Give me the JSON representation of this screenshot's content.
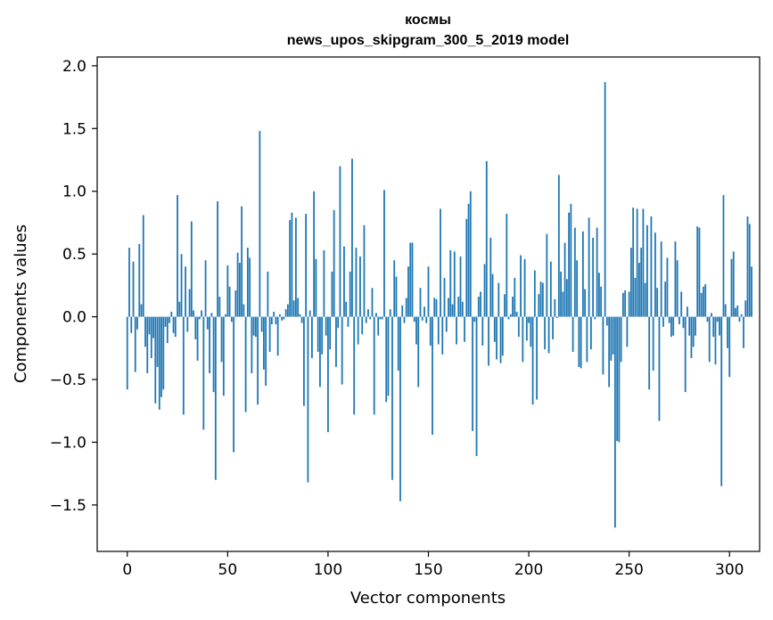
{
  "chart_data": {
    "type": "bar",
    "title": [
      "космы",
      "news_upos_skipgram_300_5_2019 model"
    ],
    "xlabel": "Vector components",
    "ylabel": "Components values",
    "xlim": [
      -15,
      315
    ],
    "ylim": [
      -1.87,
      2.07
    ],
    "xticks": [
      0,
      50,
      100,
      150,
      200,
      250,
      300
    ],
    "xtick_labels": [
      "0",
      "50",
      "100",
      "150",
      "200",
      "250",
      "300"
    ],
    "yticks": [
      2.0,
      1.5,
      1.0,
      0.5,
      0.0,
      -0.5,
      -1.0,
      -1.5
    ],
    "ytick_labels": [
      "2.0",
      "1.5",
      "1.0",
      "0.5",
      "0.0",
      "−0.5",
      "−1.0",
      "−1.5"
    ],
    "bar_color": "#1f77b4",
    "values": [
      -0.58,
      0.55,
      -0.13,
      0.44,
      -0.44,
      -0.1,
      0.58,
      0.1,
      0.81,
      -0.24,
      -0.45,
      -0.14,
      -0.33,
      -0.17,
      -0.69,
      -0.4,
      -0.74,
      -0.64,
      -0.58,
      -0.08,
      -0.21,
      -0.05,
      0.04,
      -0.13,
      -0.16,
      0.97,
      0.12,
      0.5,
      -0.78,
      0.4,
      -0.12,
      0.22,
      0.76,
      0.05,
      -0.18,
      -0.35,
      -0.02,
      0.05,
      -0.9,
      0.45,
      -0.1,
      -0.45,
      0.03,
      -0.6,
      -1.3,
      0.92,
      0.16,
      -0.36,
      -0.63,
      0.02,
      0.41,
      0.24,
      -0.04,
      -1.08,
      0.21,
      0.51,
      0.43,
      0.88,
      0.1,
      -0.76,
      0.55,
      0.47,
      -0.45,
      -0.15,
      -0.16,
      -0.7,
      1.48,
      -0.12,
      -0.42,
      -0.55,
      0.36,
      -0.28,
      -0.06,
      0.04,
      -0.06,
      -0.31,
      0.02,
      -0.03,
      -0.02,
      0.06,
      0.1,
      0.77,
      0.83,
      0.13,
      0.79,
      0.15,
      0.02,
      -0.05,
      -0.71,
      0.82,
      -1.32,
      0.05,
      -0.33,
      1.0,
      0.46,
      -0.28,
      -0.56,
      -0.3,
      0.53,
      -0.15,
      -0.92,
      -0.26,
      0.36,
      0.85,
      -0.4,
      -0.09,
      1.2,
      -0.54,
      0.56,
      0.12,
      -0.08,
      0.36,
      1.26,
      -0.78,
      0.55,
      -0.22,
      0.48,
      -0.14,
      0.73,
      -0.05,
      0.06,
      -0.02,
      0.23,
      -0.78,
      0.03,
      -0.15,
      -0.02,
      -0.02,
      1.01,
      -0.68,
      -0.63,
      0.06,
      -1.3,
      0.45,
      0.32,
      -0.43,
      -1.47,
      0.09,
      -0.05,
      0.15,
      0.4,
      0.59,
      0.59,
      -0.04,
      -0.22,
      -0.56,
      0.23,
      -0.03,
      0.08,
      -0.05,
      0.4,
      -0.23,
      -0.94,
      0.15,
      0.14,
      -0.22,
      0.86,
      -0.3,
      0.31,
      -0.12,
      0.15,
      0.53,
      0.1,
      0.52,
      -0.22,
      0.16,
      0.48,
      0.12,
      -0.2,
      0.78,
      0.9,
      1.0,
      -0.91,
      -0.04,
      -1.11,
      0.16,
      0.2,
      -0.23,
      0.42,
      1.24,
      -0.39,
      0.63,
      0.34,
      -0.2,
      -0.34,
      0.27,
      -0.37,
      -0.31,
      0.18,
      0.82,
      -0.02,
      0.02,
      0.16,
      0.31,
      0.04,
      -0.16,
      0.49,
      -0.36,
      0.46,
      -0.19,
      -0.05,
      -0.24,
      -0.7,
      0.37,
      -0.66,
      0.18,
      0.28,
      0.27,
      -0.26,
      0.66,
      -0.29,
      0.44,
      -0.18,
      0.14,
      -0.01,
      1.13,
      0.36,
      0.2,
      0.59,
      0.3,
      0.83,
      0.9,
      -0.28,
      0.71,
      0.45,
      -0.4,
      -0.41,
      0.68,
      0.22,
      -0.36,
      0.79,
      -0.26,
      0.63,
      -0.02,
      0.71,
      0.35,
      0.24,
      -0.46,
      1.87,
      -0.07,
      -0.56,
      -0.35,
      -0.3,
      -1.68,
      -0.99,
      -1.0,
      -0.36,
      0.19,
      0.21,
      -0.24,
      0.2,
      0.55,
      0.87,
      0.31,
      0.86,
      0.43,
      0.55,
      0.86,
      0.27,
      0.73,
      -0.58,
      0.8,
      -0.43,
      0.67,
      0.23,
      -0.83,
      0.6,
      -0.08,
      0.28,
      0.47,
      -0.05,
      -0.16,
      -0.15,
      0.6,
      0.45,
      -0.06,
      0.2,
      -0.09,
      -0.6,
      0.08,
      -0.15,
      -0.33,
      -0.24,
      -0.15,
      0.72,
      0.71,
      0.19,
      0.24,
      0.26,
      -0.04,
      -0.36,
      0.03,
      -0.16,
      -0.38,
      -0.04,
      -0.15,
      -1.35,
      0.97,
      0.1,
      -0.25,
      -0.48,
      0.46,
      0.52,
      0.07,
      0.09,
      -0.04,
      0.02,
      -0.25,
      0.13,
      0.8,
      0.74,
      0.4
    ]
  }
}
